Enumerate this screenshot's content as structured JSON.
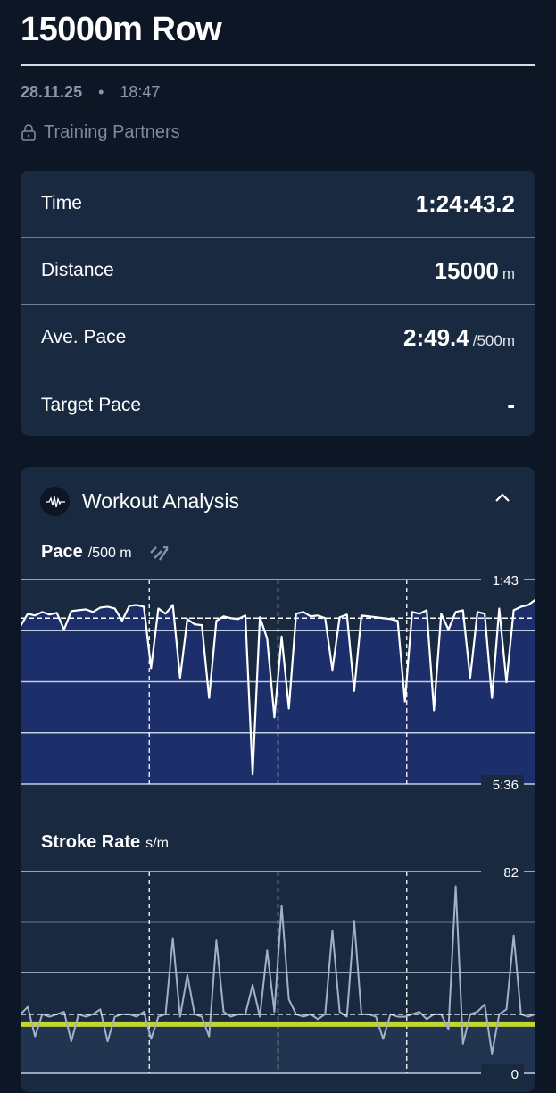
{
  "header": {
    "title": "15000m Row",
    "date": "28.11.25",
    "separator": "•",
    "time": "18:47",
    "privacy": "Training Partners",
    "privacy_icon": "lock-icon"
  },
  "stats": [
    {
      "label": "Time",
      "value": "1:24:43.2",
      "unit": ""
    },
    {
      "label": "Distance",
      "value": "15000",
      "unit": "m"
    },
    {
      "label": "Ave. Pace",
      "value": "2:49.4",
      "unit": "/500m"
    },
    {
      "label": "Target Pace",
      "value": "-",
      "unit": ""
    }
  ],
  "analysis": {
    "title": "Workout Analysis",
    "icon": "waveform-icon",
    "toggle_icon": "chevron-up-icon"
  },
  "colors": {
    "background": "#0c1624",
    "card": "#19293f",
    "pace_fill": "#1c2f6b",
    "line": "#ffffff",
    "stroke_line": "#a3b1c8",
    "target": "#c6d631"
  },
  "chart_data": [
    {
      "type": "area",
      "title": "Pace",
      "unit": "/500 m",
      "icon": "compare-icon",
      "y_tick_labels": [
        "1:43",
        "5:36"
      ],
      "ylim": [
        "1:43",
        "5:36"
      ],
      "y_inverted": true,
      "grid": true,
      "split_markers": [
        0.25,
        0.5,
        0.75
      ],
      "reference_line": "2:27",
      "values": [
        "2:36",
        "2:22",
        "2:24",
        "2:20",
        "2:23",
        "2:21",
        "2:40",
        "2:19",
        "2:18",
        "2:17",
        "2:20",
        "2:15",
        "2:14",
        "2:16",
        "2:30",
        "2:13",
        "2:12",
        "2:14",
        "3:24",
        "2:16",
        "2:22",
        "2:12",
        "3:35",
        "2:28",
        "2:34",
        "2:35",
        "3:58",
        "2:30",
        "2:25",
        "2:27",
        "2:28",
        "2:24",
        "5:25",
        "2:26",
        "2:50",
        "4:20",
        "2:48",
        "4:10",
        "2:22",
        "2:20",
        "2:25",
        "2:24",
        "2:27",
        "3:26",
        "2:26",
        "2:23",
        "3:50",
        "2:24",
        "2:25",
        "2:26",
        "2:27",
        "2:28",
        "2:30",
        "4:02",
        "2:20",
        "2:22",
        "2:18",
        "4:12",
        "2:22",
        "2:40",
        "2:20",
        "2:18",
        "3:35",
        "2:20",
        "2:22",
        "3:58",
        "2:16",
        "3:40",
        "2:18",
        "2:14",
        "2:12",
        "2:06"
      ]
    },
    {
      "type": "line",
      "title": "Stroke Rate",
      "unit": "s/m",
      "y_tick_labels": [
        "82",
        "0"
      ],
      "ylim": [
        0,
        82
      ],
      "grid": true,
      "split_markers": [
        0.25,
        0.5,
        0.75
      ],
      "reference_line": 24,
      "target_line": 20,
      "values": [
        24,
        27,
        15,
        24,
        23,
        24,
        25,
        13,
        24,
        23,
        24,
        26,
        13,
        23,
        24,
        24,
        23,
        25,
        14,
        23,
        24,
        55,
        23,
        40,
        24,
        23,
        15,
        54,
        25,
        23,
        24,
        24,
        36,
        23,
        50,
        25,
        68,
        30,
        24,
        23,
        24,
        22,
        24,
        58,
        25,
        23,
        62,
        24,
        24,
        23,
        14,
        24,
        23,
        23,
        24,
        25,
        22,
        24,
        24,
        18,
        76,
        12,
        24,
        25,
        28,
        8,
        24,
        26,
        56,
        24,
        23,
        24
      ]
    }
  ]
}
